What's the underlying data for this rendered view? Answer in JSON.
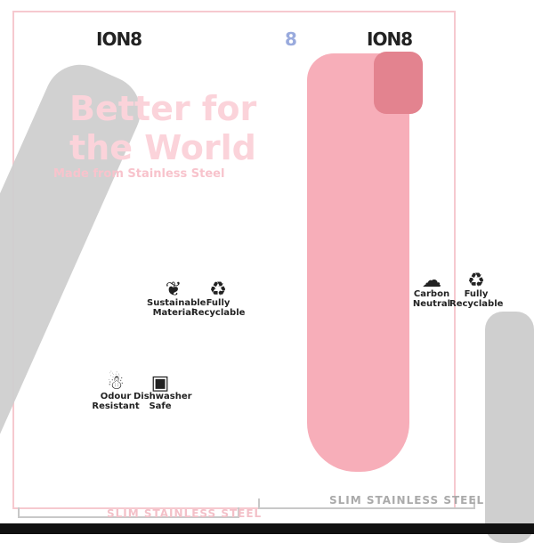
{
  "brand": {
    "logo": "ION8",
    "logo_small": "8"
  },
  "headline": {
    "title_line1": "Better for",
    "title_line2": "the World",
    "subtitle": "Made from Stainless Steel"
  },
  "colors": {
    "accent_pink": "#f7aeb9",
    "title_pink": "#fbd3da",
    "frame_pink": "#f6c9cf",
    "bottle_gray": "#cfcfcf"
  },
  "features": [
    {
      "icon": "leaf-icon",
      "label": "Sustainable Material"
    },
    {
      "icon": "recycle-icon",
      "label": "Fully Recyclable"
    },
    {
      "icon": "thermometer-icon",
      "label": "Odour Resistant"
    },
    {
      "icon": "dishwasher-icon",
      "label": "Dishwasher Safe"
    },
    {
      "icon": "carbon-icon",
      "label": "Carbon Neutral"
    },
    {
      "icon": "recycle-icon",
      "label": "Fully Recyclable"
    }
  ],
  "footer": {
    "label_left": "SLIM STAINLESS STEEL",
    "label_right": "SLIM STAINLESS STEEL"
  }
}
